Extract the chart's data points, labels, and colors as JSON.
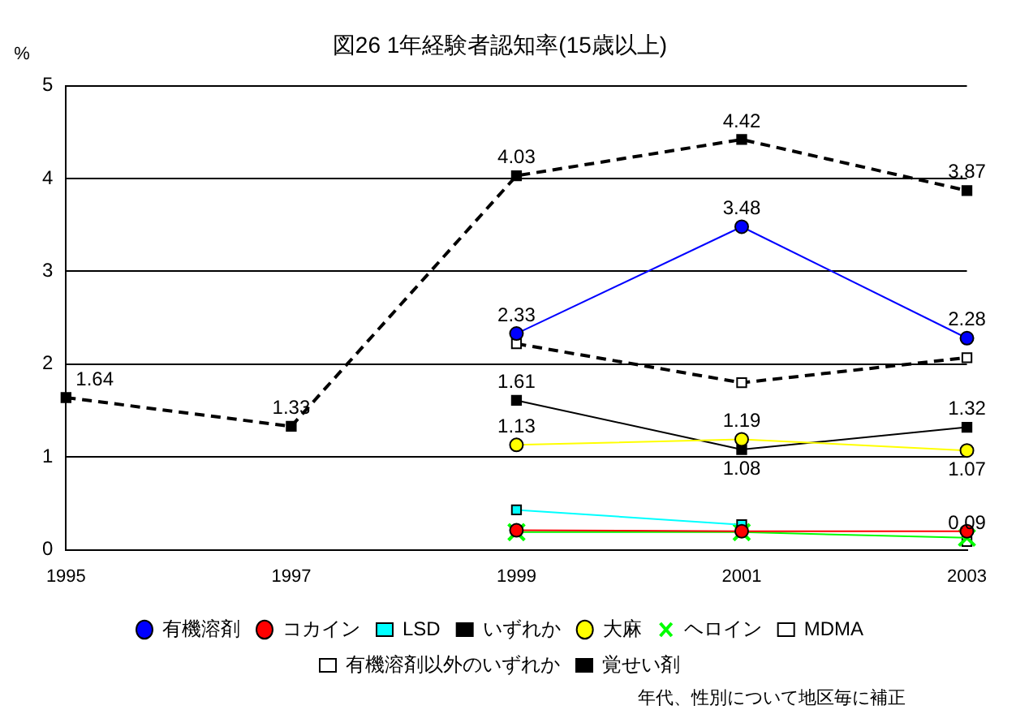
{
  "chart_data": {
    "type": "line",
    "title": "図26 1年経験者認知率(15歳以上)",
    "ylabel": "%",
    "categories": [
      "1995",
      "1997",
      "1999",
      "2001",
      "2003"
    ],
    "series": [
      {
        "name": "有機溶剤",
        "color": "#0000ff",
        "marker": "circle",
        "line_style": "solid",
        "values": [
          null,
          null,
          2.33,
          3.48,
          2.28
        ],
        "value_labels": [
          null,
          null,
          "2.33",
          "3.48",
          "2.28"
        ]
      },
      {
        "name": "コカイン",
        "color": "#ff0000",
        "marker": "circle",
        "line_style": "solid",
        "values": [
          null,
          null,
          0.21,
          0.2,
          0.2
        ]
      },
      {
        "name": "LSD",
        "color": "#00ffff",
        "marker": "square",
        "line_style": "solid",
        "values": [
          null,
          null,
          0.43,
          0.27,
          null
        ]
      },
      {
        "name": "いずれか",
        "color": "#000000",
        "marker": "square",
        "line_style": "dashed",
        "values": [
          1.64,
          1.33,
          4.03,
          4.42,
          3.87
        ],
        "value_labels": [
          "1.64",
          "1.33",
          "4.03",
          "4.42",
          "3.87"
        ]
      },
      {
        "name": "大麻",
        "color": "#ffff00",
        "marker": "circle",
        "line_style": "solid",
        "values": [
          null,
          null,
          1.13,
          1.19,
          1.07
        ],
        "value_labels": [
          null,
          null,
          "1.13",
          "1.19",
          "1.07"
        ]
      },
      {
        "name": "ヘロイン",
        "color": "#00ff00",
        "marker": "cross",
        "line_style": "solid",
        "values": [
          null,
          null,
          0.19,
          0.19,
          0.13
        ]
      },
      {
        "name": "MDMA",
        "color": "#ffffff",
        "marker": "square",
        "line_style": "solid",
        "values": [
          null,
          null,
          null,
          null,
          0.09
        ],
        "value_labels": [
          null,
          null,
          null,
          null,
          "0.09"
        ]
      },
      {
        "name": "有機溶剤以外のいずれか",
        "color": "#ffffff",
        "marker": "square",
        "line_style": "dashed",
        "values": [
          null,
          null,
          2.22,
          1.8,
          2.07
        ]
      },
      {
        "name": "覚せい剤",
        "color": "#000000",
        "marker": "square",
        "line_style": "solid",
        "values": [
          null,
          null,
          1.61,
          1.08,
          1.32
        ],
        "value_labels": [
          null,
          null,
          "1.61",
          "1.08",
          "1.32"
        ]
      }
    ],
    "ylim": [
      0,
      5
    ],
    "yticks": [
      0,
      1,
      2,
      3,
      4,
      5
    ],
    "grid": "y",
    "legend": "bottom",
    "annotations": [
      "年代、性別について地区毎に補正"
    ]
  }
}
